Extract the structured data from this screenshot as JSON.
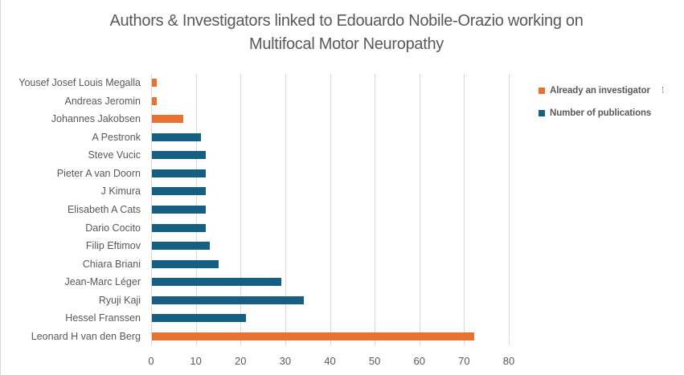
{
  "chart_data": {
    "type": "bar",
    "orientation": "horizontal",
    "title": "Authors & Investigators linked to Edouardo Nobile-Orazio working on Multifocal Motor Neuropathy",
    "title_lines": [
      "Authors & Investigators linked to Edouardo Nobile-Orazio working on",
      "Multifocal Motor Neuropathy"
    ],
    "xlabel": "",
    "ylabel": "",
    "xlim": [
      0,
      80
    ],
    "xticks": [
      "0",
      "10",
      "20",
      "30",
      "40",
      "50",
      "60",
      "70",
      "80"
    ],
    "grid": true,
    "legend_position": "right",
    "legend": [
      {
        "label": "Already an investigator",
        "color": "#e97132"
      },
      {
        "label": "Number of publications",
        "color": "#156082"
      }
    ],
    "categories": [
      "Yousef Josef Louis Megalla",
      "Andreas Jeromin",
      "Johannes Jakobsen",
      "A Pestronk",
      "Steve Vucic",
      "Pieter A van Doorn",
      "J Kimura",
      "Elisabeth A Cats",
      "Dario Cocito",
      "Filip Eftimov",
      "Chiara Briani",
      "Jean-Marc Léger",
      "Ryuji Kaji",
      "Hessel Franssen",
      "Leonard H van den Berg"
    ],
    "values": [
      1,
      1,
      7,
      11,
      12,
      12,
      12,
      12,
      12,
      13,
      15,
      29,
      34,
      21,
      72
    ],
    "series_membership": [
      "Already an investigator",
      "Already an investigator",
      "Already an investigator",
      "Number of publications",
      "Number of publications",
      "Number of publications",
      "Number of publications",
      "Number of publications",
      "Number of publications",
      "Number of publications",
      "Number of publications",
      "Number of publications",
      "Number of publications",
      "Number of publications",
      "Already an investigator"
    ],
    "series": [
      {
        "name": "Already an investigator",
        "color": "#e97132",
        "values": [
          1,
          1,
          7,
          null,
          null,
          null,
          null,
          null,
          null,
          null,
          null,
          null,
          null,
          null,
          72
        ]
      },
      {
        "name": "Number of publications",
        "color": "#156082",
        "values": [
          null,
          null,
          null,
          11,
          12,
          12,
          12,
          12,
          12,
          13,
          15,
          29,
          34,
          21,
          null
        ]
      }
    ]
  }
}
